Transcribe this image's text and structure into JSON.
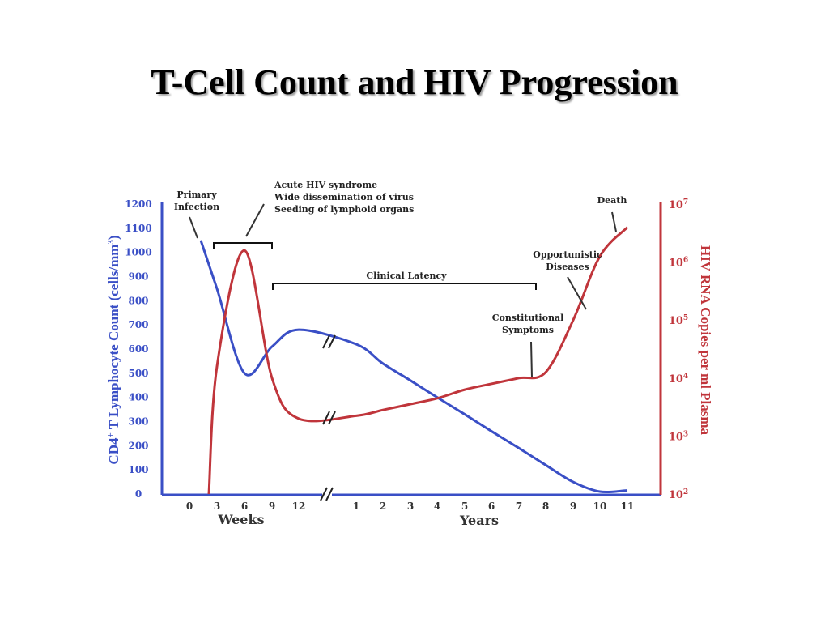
{
  "slide": {
    "title": "T-Cell Count and HIV Progression"
  },
  "colors": {
    "cd4": "#3a4fc6",
    "rna": "#c0353b",
    "text": "#222222",
    "bracket": "#111111"
  },
  "chart_data": {
    "type": "line",
    "x_axis": {
      "tick_labels": [
        "0",
        "3",
        "6",
        "9",
        "12",
        "1",
        "2",
        "3",
        "4",
        "5",
        "6",
        "7",
        "8",
        "9",
        "10",
        "11"
      ],
      "weeks_label": "Weeks",
      "years_label": "Years",
      "break": true
    },
    "y_left": {
      "label_prefix": "CD4",
      "label_sup": "+",
      "label_main": " T Lymphocyte Count (cells/mm",
      "label_sup2": "3",
      "label_end": ")",
      "ticks": [
        "0",
        "100",
        "200",
        "300",
        "400",
        "500",
        "600",
        "700",
        "800",
        "900",
        "1000",
        "1100",
        "1200"
      ],
      "range": [
        0,
        1200
      ]
    },
    "y_right": {
      "label": "HIV RNA Copies per ml Plasma",
      "ticks": [
        {
          "base": "10",
          "exp": "2"
        },
        {
          "base": "10",
          "exp": "3"
        },
        {
          "base": "10",
          "exp": "4"
        },
        {
          "base": "10",
          "exp": "5"
        },
        {
          "base": "10",
          "exp": "6"
        },
        {
          "base": "10",
          "exp": "7"
        }
      ],
      "range_log10": [
        2,
        7
      ]
    },
    "series": [
      {
        "key": "cd4",
        "points": [
          {
            "t": "0 wk",
            "v": 1050
          },
          {
            "t": "3 wk",
            "v": 850
          },
          {
            "t": "6 wk",
            "v": 500
          },
          {
            "t": "9 wk",
            "v": 610
          },
          {
            "t": "12 wk",
            "v": 680
          },
          {
            "t": "1 yr",
            "v": 620
          },
          {
            "t": "2 yr",
            "v": 540
          },
          {
            "t": "3 yr",
            "v": 470
          },
          {
            "t": "4 yr",
            "v": 400
          },
          {
            "t": "5 yr",
            "v": 330
          },
          {
            "t": "6 yr",
            "v": 260
          },
          {
            "t": "7 yr",
            "v": 190
          },
          {
            "t": "8 yr",
            "v": 120
          },
          {
            "t": "9 yr",
            "v": 50
          },
          {
            "t": "10 yr",
            "v": 10
          },
          {
            "t": "11 yr",
            "v": 15
          }
        ]
      },
      {
        "key": "rna",
        "points": [
          {
            "t": "0 wk",
            "log10": 2.0
          },
          {
            "t": "3 wk",
            "log10": 4.2
          },
          {
            "t": "6 wk",
            "log10": 6.2
          },
          {
            "t": "9 wk",
            "log10": 4.0
          },
          {
            "t": "12 wk",
            "log10": 3.3
          },
          {
            "t": "1 yr",
            "log10": 3.35
          },
          {
            "t": "2 yr",
            "log10": 3.45
          },
          {
            "t": "3 yr",
            "log10": 3.55
          },
          {
            "t": "4 yr",
            "log10": 3.65
          },
          {
            "t": "5 yr",
            "log10": 3.8
          },
          {
            "t": "6 yr",
            "log10": 3.9
          },
          {
            "t": "7 yr",
            "log10": 4.0
          },
          {
            "t": "8 yr",
            "log10": 4.1
          },
          {
            "t": "9 yr",
            "log10": 5.0
          },
          {
            "t": "10 yr",
            "log10": 6.1
          },
          {
            "t": "11 yr",
            "log10": 6.6
          }
        ]
      }
    ],
    "annotations": {
      "primary_infection": [
        "Primary",
        "Infection"
      ],
      "acute": [
        "Acute HIV syndrome",
        "Wide dissemination of virus",
        "Seeding of lymphoid organs"
      ],
      "clinical_latency": "Clinical Latency",
      "constitutional": [
        "Constitutional",
        "Symptoms"
      ],
      "opportunistic": [
        "Opportunistic",
        "Diseases"
      ],
      "death": "Death"
    }
  }
}
